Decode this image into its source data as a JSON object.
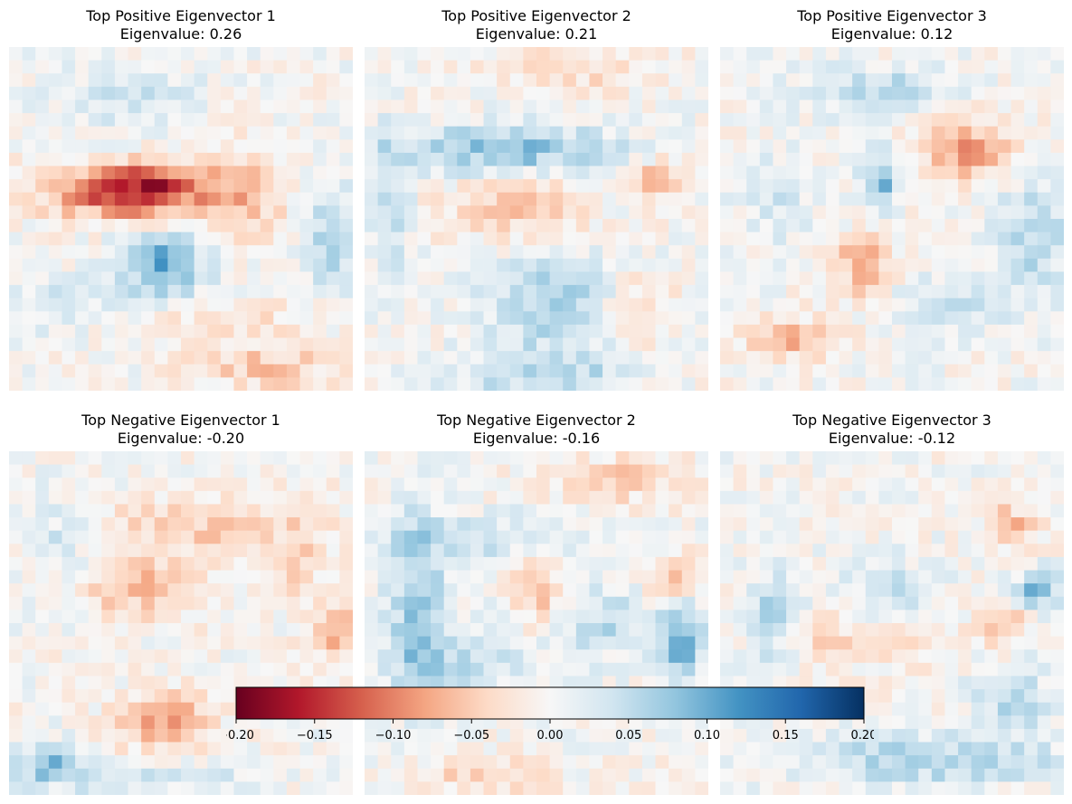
{
  "chart_data": {
    "type": "heatmap",
    "grid": {
      "rows": 26,
      "cols": 26
    },
    "colormap": "RdBu",
    "value_range": [
      -0.2,
      0.2
    ],
    "panels": [
      {
        "title": "Top Positive Eigenvector 1",
        "subtitle": "Eigenvalue: 0.26",
        "eigenvalue": 0.26,
        "blobs": [
          {
            "cx": 0.35,
            "cy": 0.42,
            "sx": 0.16,
            "sy": 0.055,
            "amp": -0.15
          },
          {
            "cx": 0.43,
            "cy": 0.4,
            "sx": 0.05,
            "sy": 0.05,
            "amp": -0.05
          },
          {
            "cx": 0.45,
            "cy": 0.63,
            "sx": 0.09,
            "sy": 0.07,
            "amp": 0.1
          },
          {
            "cx": 0.35,
            "cy": 0.15,
            "sx": 0.14,
            "sy": 0.07,
            "amp": 0.04
          },
          {
            "cx": 0.68,
            "cy": 0.43,
            "sx": 0.09,
            "sy": 0.1,
            "amp": -0.055
          },
          {
            "cx": 0.94,
            "cy": 0.55,
            "sx": 0.05,
            "sy": 0.1,
            "amp": 0.07
          },
          {
            "cx": 0.75,
            "cy": 0.93,
            "sx": 0.15,
            "sy": 0.05,
            "amp": -0.05
          },
          {
            "cx": 0.6,
            "cy": 0.8,
            "sx": 0.25,
            "sy": 0.05,
            "amp": -0.025
          },
          {
            "cx": 0.15,
            "cy": 0.75,
            "sx": 0.12,
            "sy": 0.06,
            "amp": 0.035
          }
        ]
      },
      {
        "title": "Top Positive Eigenvector 2",
        "subtitle": "Eigenvalue: 0.21",
        "eigenvalue": 0.21,
        "blobs": [
          {
            "cx": 0.42,
            "cy": 0.3,
            "sx": 0.22,
            "sy": 0.05,
            "amp": 0.09
          },
          {
            "cx": 0.07,
            "cy": 0.45,
            "sx": 0.04,
            "sy": 0.14,
            "amp": 0.06
          },
          {
            "cx": 0.45,
            "cy": 0.47,
            "sx": 0.15,
            "sy": 0.07,
            "amp": -0.055
          },
          {
            "cx": 0.85,
            "cy": 0.39,
            "sx": 0.04,
            "sy": 0.04,
            "amp": -0.07
          },
          {
            "cx": 0.55,
            "cy": 0.75,
            "sx": 0.14,
            "sy": 0.12,
            "amp": 0.06
          },
          {
            "cx": 0.8,
            "cy": 0.77,
            "sx": 0.07,
            "sy": 0.07,
            "amp": -0.05
          },
          {
            "cx": 0.5,
            "cy": 0.95,
            "sx": 0.2,
            "sy": 0.04,
            "amp": 0.05
          },
          {
            "cx": 0.6,
            "cy": 0.06,
            "sx": 0.2,
            "sy": 0.05,
            "amp": -0.035
          }
        ]
      },
      {
        "title": "Top Positive Eigenvector 3",
        "subtitle": "Eigenvalue: 0.12",
        "eigenvalue": 0.12,
        "blobs": [
          {
            "cx": 0.72,
            "cy": 0.3,
            "sx": 0.1,
            "sy": 0.07,
            "amp": -0.08
          },
          {
            "cx": 0.42,
            "cy": 0.63,
            "sx": 0.05,
            "sy": 0.06,
            "amp": -0.09
          },
          {
            "cx": 0.22,
            "cy": 0.85,
            "sx": 0.1,
            "sy": 0.04,
            "amp": -0.07
          },
          {
            "cx": 0.47,
            "cy": 0.38,
            "sx": 0.04,
            "sy": 0.06,
            "amp": 0.09
          },
          {
            "cx": 0.48,
            "cy": 0.13,
            "sx": 0.15,
            "sy": 0.05,
            "amp": 0.06
          },
          {
            "cx": 0.9,
            "cy": 0.55,
            "sx": 0.08,
            "sy": 0.12,
            "amp": 0.055
          },
          {
            "cx": 0.7,
            "cy": 0.75,
            "sx": 0.12,
            "sy": 0.06,
            "amp": 0.04
          },
          {
            "cx": 0.15,
            "cy": 0.45,
            "sx": 0.07,
            "sy": 0.1,
            "amp": 0.03
          }
        ]
      },
      {
        "title": "Top Negative Eigenvector 1",
        "subtitle": "Eigenvalue: -0.20",
        "eigenvalue": -0.2,
        "blobs": [
          {
            "cx": 0.4,
            "cy": 0.4,
            "sx": 0.14,
            "sy": 0.06,
            "amp": -0.06
          },
          {
            "cx": 0.55,
            "cy": 0.22,
            "sx": 0.25,
            "sy": 0.06,
            "amp": -0.045
          },
          {
            "cx": 0.45,
            "cy": 0.78,
            "sx": 0.1,
            "sy": 0.06,
            "amp": -0.075
          },
          {
            "cx": 0.96,
            "cy": 0.52,
            "sx": 0.05,
            "sy": 0.05,
            "amp": -0.08
          },
          {
            "cx": 0.12,
            "cy": 0.9,
            "sx": 0.06,
            "sy": 0.04,
            "amp": 0.08
          },
          {
            "cx": 0.35,
            "cy": 0.95,
            "sx": 0.25,
            "sy": 0.03,
            "amp": 0.04
          },
          {
            "cx": 0.15,
            "cy": 0.25,
            "sx": 0.08,
            "sy": 0.08,
            "amp": 0.04
          },
          {
            "cx": 0.85,
            "cy": 0.35,
            "sx": 0.06,
            "sy": 0.1,
            "amp": -0.03
          }
        ]
      },
      {
        "title": "Top Negative Eigenvector 2",
        "subtitle": "Eigenvalue: -0.16",
        "eigenvalue": -0.16,
        "blobs": [
          {
            "cx": 0.15,
            "cy": 0.45,
            "sx": 0.06,
            "sy": 0.2,
            "amp": 0.07
          },
          {
            "cx": 0.38,
            "cy": 0.25,
            "sx": 0.2,
            "sy": 0.05,
            "amp": 0.04
          },
          {
            "cx": 0.92,
            "cy": 0.55,
            "sx": 0.05,
            "sy": 0.08,
            "amp": 0.1
          },
          {
            "cx": 0.7,
            "cy": 0.5,
            "sx": 0.1,
            "sy": 0.07,
            "amp": 0.05
          },
          {
            "cx": 0.3,
            "cy": 0.6,
            "sx": 0.15,
            "sy": 0.07,
            "amp": 0.045
          },
          {
            "cx": 0.5,
            "cy": 0.4,
            "sx": 0.05,
            "sy": 0.08,
            "amp": -0.06
          },
          {
            "cx": 0.9,
            "cy": 0.38,
            "sx": 0.05,
            "sy": 0.05,
            "amp": -0.06
          },
          {
            "cx": 0.75,
            "cy": 0.08,
            "sx": 0.15,
            "sy": 0.05,
            "amp": -0.045
          },
          {
            "cx": 0.35,
            "cy": 0.95,
            "sx": 0.15,
            "sy": 0.04,
            "amp": -0.04
          }
        ]
      },
      {
        "title": "Top Negative Eigenvector 3",
        "subtitle": "Eigenvalue: -0.12",
        "eigenvalue": -0.12,
        "blobs": [
          {
            "cx": 0.93,
            "cy": 0.4,
            "sx": 0.04,
            "sy": 0.04,
            "amp": 0.1
          },
          {
            "cx": 0.15,
            "cy": 0.5,
            "sx": 0.05,
            "sy": 0.12,
            "amp": 0.06
          },
          {
            "cx": 0.6,
            "cy": 0.9,
            "sx": 0.3,
            "sy": 0.05,
            "amp": 0.06
          },
          {
            "cx": 0.85,
            "cy": 0.72,
            "sx": 0.08,
            "sy": 0.07,
            "amp": 0.05
          },
          {
            "cx": 0.5,
            "cy": 0.42,
            "sx": 0.1,
            "sy": 0.07,
            "amp": 0.04
          },
          {
            "cx": 0.85,
            "cy": 0.22,
            "sx": 0.06,
            "sy": 0.05,
            "amp": -0.06
          },
          {
            "cx": 0.42,
            "cy": 0.55,
            "sx": 0.18,
            "sy": 0.05,
            "amp": -0.045
          },
          {
            "cx": 0.82,
            "cy": 0.5,
            "sx": 0.06,
            "sy": 0.04,
            "amp": -0.05
          }
        ]
      }
    ],
    "colorbar": {
      "orientation": "horizontal",
      "range": [
        -0.2,
        0.2
      ],
      "ticks": [
        -0.2,
        -0.15,
        -0.1,
        -0.05,
        0.0,
        0.05,
        0.1,
        0.15,
        0.2
      ],
      "tick_labels": [
        "−0.20",
        "−0.15",
        "−0.10",
        "−0.05",
        "0.00",
        "0.05",
        "0.10",
        "0.15",
        "0.20"
      ]
    }
  }
}
